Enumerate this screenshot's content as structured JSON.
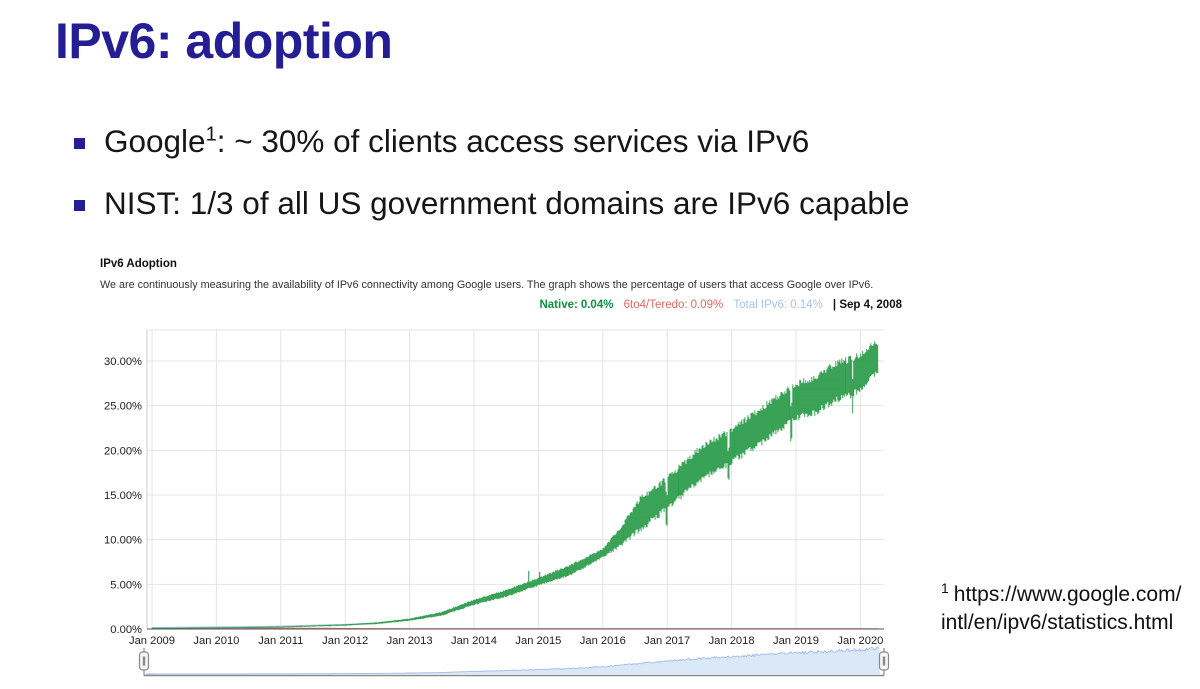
{
  "slide": {
    "title": "IPv6: adoption",
    "bullets": [
      {
        "pre": "Google",
        "sup": "1",
        "post": ": ~ 30% of clients access services via IPv6"
      },
      {
        "pre": "NIST: 1/3 of all US government domains are IPv6 capable",
        "sup": "",
        "post": ""
      }
    ],
    "footnote": {
      "sup": "1",
      "line1": "https://www.google.com/",
      "line2": "intl/en/ipv6/statistics.html"
    }
  },
  "chart_data": {
    "type": "area",
    "title": "IPv6 Adoption",
    "subtitle": "We are continuously measuring the availability of IPv6 connectivity among Google users. The graph shows the percentage of users that access Google over IPv6.",
    "legend_position": "top-right",
    "grid": true,
    "legend": [
      {
        "label": "Native:",
        "value": "0.04%",
        "color": "#0c9140"
      },
      {
        "label": "6to4/Teredo:",
        "value": "0.09%",
        "color": "#e0695f"
      },
      {
        "label": "Total IPv6:",
        "value": "0.14%",
        "color": "#a3c4f0"
      }
    ],
    "date_label": "| Sep 4, 2008",
    "x_ticks": [
      {
        "t": 2009,
        "label": "Jan 2009"
      },
      {
        "t": 2010,
        "label": "Jan 2010"
      },
      {
        "t": 2011,
        "label": "Jan 2011"
      },
      {
        "t": 2012,
        "label": "Jan 2012"
      },
      {
        "t": 2013,
        "label": "Jan 2013"
      },
      {
        "t": 2014,
        "label": "Jan 2014"
      },
      {
        "t": 2015,
        "label": "Jan 2015"
      },
      {
        "t": 2016,
        "label": "Jan 2016"
      },
      {
        "t": 2017,
        "label": "Jan 2017"
      },
      {
        "t": 2018,
        "label": "Jan 2018"
      },
      {
        "t": 2019,
        "label": "Jan 2019"
      },
      {
        "t": 2020,
        "label": "Jan 2020"
      }
    ],
    "y_ticks": [
      {
        "v": 0,
        "label": "0.00%"
      },
      {
        "v": 5,
        "label": "5.00%"
      },
      {
        "v": 10,
        "label": "10.00%"
      },
      {
        "v": 15,
        "label": "15.00%"
      },
      {
        "v": 20,
        "label": "20.00%"
      },
      {
        "v": 25,
        "label": "25.00%"
      },
      {
        "v": 30,
        "label": "30.00%"
      }
    ],
    "ylim": [
      0,
      33.5
    ],
    "xlim": [
      2008.92,
      2020.36
    ],
    "series": [
      {
        "name": "Native",
        "color": "#2f9e4e",
        "note": "envelope points: [year, mid %, half-band %] — weekly oscillation band",
        "envelope": [
          [
            2009.0,
            0.05,
            0.03
          ],
          [
            2010.0,
            0.12,
            0.04
          ],
          [
            2011.0,
            0.22,
            0.06
          ],
          [
            2012.0,
            0.45,
            0.08
          ],
          [
            2012.5,
            0.65,
            0.1
          ],
          [
            2013.0,
            1.05,
            0.13
          ],
          [
            2013.5,
            1.7,
            0.22
          ],
          [
            2014.0,
            3.0,
            0.3
          ],
          [
            2014.5,
            4.0,
            0.4
          ],
          [
            2015.0,
            5.3,
            0.45
          ],
          [
            2015.5,
            6.6,
            0.6
          ],
          [
            2016.0,
            8.5,
            0.5
          ],
          [
            2016.3,
            10.5,
            1.2
          ],
          [
            2016.6,
            13.0,
            1.9
          ],
          [
            2017.0,
            15.2,
            1.85
          ],
          [
            2017.5,
            18.4,
            1.95
          ],
          [
            2018.0,
            20.5,
            2.0
          ],
          [
            2018.5,
            23.0,
            2.1
          ],
          [
            2019.0,
            25.5,
            2.05
          ],
          [
            2019.3,
            26.2,
            2.2
          ],
          [
            2019.6,
            27.6,
            2.2
          ],
          [
            2019.85,
            28.2,
            2.2
          ],
          [
            2020.0,
            28.8,
            2.2
          ],
          [
            2020.15,
            29.8,
            2.0
          ],
          [
            2020.27,
            30.4,
            1.8
          ]
        ],
        "spikes": [
          {
            "t": 2014.85,
            "top": 6.5
          },
          {
            "t": 2015.02,
            "top": 6.4
          }
        ],
        "notches": [
          2016.99,
          2017.95,
          2018.93,
          2019.88
        ]
      },
      {
        "name": "6to4/Teredo",
        "color": "#e57368",
        "points": [
          [
            2009.0,
            0.1
          ],
          [
            2010.0,
            0.1
          ],
          [
            2011.0,
            0.09
          ],
          [
            2011.7,
            0.07
          ],
          [
            2012.3,
            0.03
          ],
          [
            2013.0,
            0.02
          ],
          [
            2016.0,
            0.015
          ],
          [
            2020.27,
            0.01
          ]
        ]
      },
      {
        "name": "Total IPv6",
        "color": "#a3c4f0",
        "note": "native + 6to4/teredo; hidden under native band after 2012"
      }
    ],
    "range_selector": {
      "fill": "#dbe8f8",
      "line": "#9dbde9",
      "handle_fill": "#f5f5f5",
      "handle_border": "#8a8a8a"
    },
    "colors": {
      "grid": "#e4e4e4",
      "axis_bottom": "#555555",
      "axis_left": "#cccccc",
      "tick_text": "#222222"
    }
  }
}
